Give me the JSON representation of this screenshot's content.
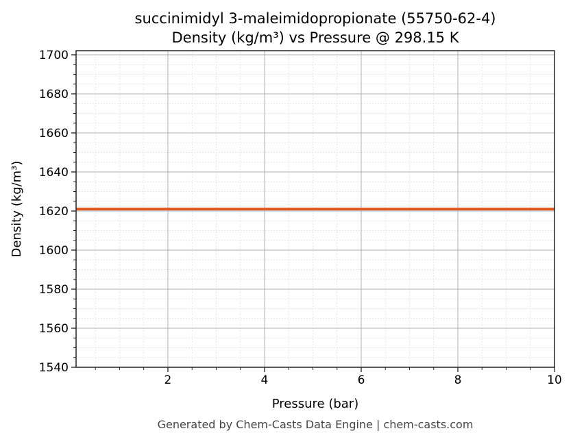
{
  "chart_data": {
    "type": "line",
    "title": "succinimidyl 3-maleimidopropionate (55750-62-4)",
    "subtitle": "Density (kg/m³) vs Pressure @ 298.15 K",
    "xlabel": "Pressure (bar)",
    "ylabel": "Density (kg/m³)",
    "xlim": [
      0.1,
      10
    ],
    "ylim": [
      1540,
      1702.1
    ],
    "xticks": [
      2,
      4,
      6,
      8,
      10
    ],
    "xtick_labels": [
      "2",
      "4",
      "6",
      "8",
      "10"
    ],
    "yticks": [
      1540,
      1560,
      1580,
      1600,
      1620,
      1640,
      1660,
      1680,
      1700
    ],
    "ytick_labels": [
      "1540",
      "1560",
      "1580",
      "1600",
      "1620",
      "1640",
      "1660",
      "1680",
      "1700"
    ],
    "grid": true,
    "series": [
      {
        "name": "Density",
        "color": "#e0561f",
        "x": [
          0.1,
          10
        ],
        "y": [
          1621,
          1621
        ]
      }
    ]
  },
  "footer": "Generated by Chem-Casts Data Engine | chem-casts.com"
}
